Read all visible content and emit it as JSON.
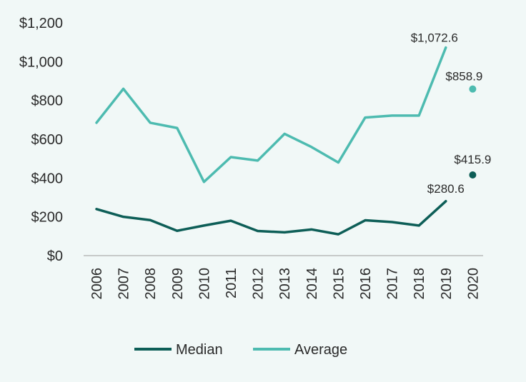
{
  "chart_data": {
    "type": "line",
    "title": "",
    "xlabel": "",
    "ylabel": "",
    "categories": [
      "2006",
      "2007",
      "2008",
      "2009",
      "2010",
      "2011",
      "2012",
      "2013",
      "2014",
      "2015",
      "2016",
      "2017",
      "2018",
      "2019",
      "2020"
    ],
    "ylim": [
      0,
      1200
    ],
    "yticks": [
      0,
      200,
      400,
      600,
      800,
      1000,
      1200
    ],
    "ytick_labels": [
      "$0",
      "$200",
      "$400",
      "$600",
      "$800",
      "$1,000",
      "$1,200"
    ],
    "grid": false,
    "legend_position": "bottom",
    "series": [
      {
        "name": "Median",
        "color": "#0d5e57",
        "values": [
          240,
          200,
          183,
          128,
          155,
          180,
          127,
          120,
          135,
          110,
          182,
          173,
          155,
          280.6,
          null
        ],
        "standalone_point": {
          "category": "2020",
          "value": 415.9
        },
        "annotations": [
          {
            "category": "2019",
            "value": 280.6,
            "text": "$280.6"
          },
          {
            "category": "2020",
            "value": 415.9,
            "text": "$415.9"
          }
        ]
      },
      {
        "name": "Average",
        "color": "#4dbbb0",
        "values": [
          685,
          860,
          685,
          658,
          380,
          508,
          490,
          628,
          560,
          480,
          712,
          722,
          722,
          1072.6,
          null
        ],
        "standalone_point": {
          "category": "2020",
          "value": 858.9
        },
        "annotations": [
          {
            "category": "2019",
            "value": 1072.6,
            "text": "$1,072.6"
          },
          {
            "category": "2020",
            "value": 858.9,
            "text": "$858.9"
          }
        ]
      }
    ]
  }
}
